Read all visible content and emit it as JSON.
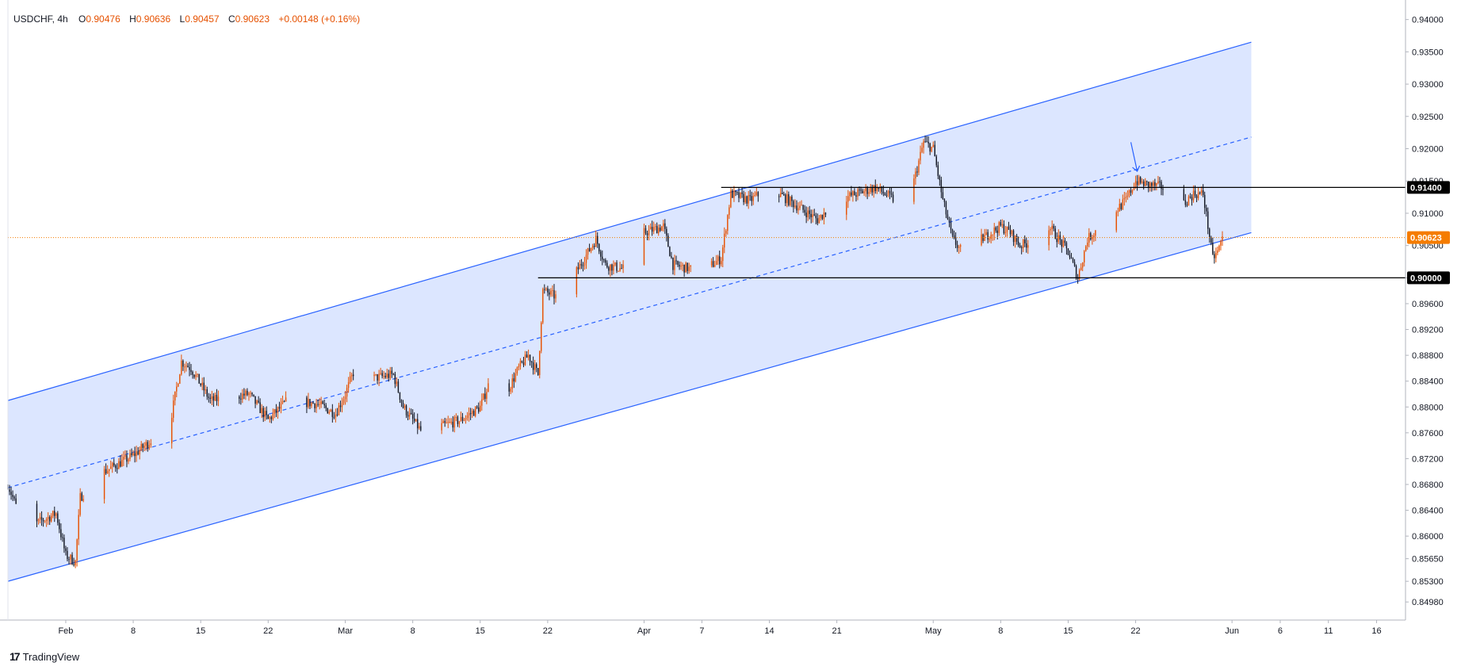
{
  "legend": {
    "symbol": "USDCHF, 4h",
    "open_label": "O",
    "open": "0.90476",
    "high_label": "H",
    "high": "0.90636",
    "low_label": "L",
    "low": "0.90457",
    "close_label": "C",
    "close": "0.90623",
    "change": "+0.00148 (+0.16%)"
  },
  "brand": {
    "icon": "tradingview-logo-icon",
    "name": "TradingView"
  },
  "colors": {
    "up": "#e65100",
    "down": "#131722",
    "channel_line": "#2962ff",
    "channel_fill": "#d6e2ff",
    "price_line": "#f57c00",
    "axis_text": "#131722"
  },
  "chart_data": {
    "type": "candlestick",
    "symbol": "USDCHF",
    "interval": "4h",
    "ylim": [
      0.847,
      0.9418
    ],
    "y_ticks": [
      "0.94000",
      "0.93500",
      "0.93000",
      "0.92500",
      "0.92000",
      "0.91500",
      "0.91000",
      "0.90500",
      "0.90000",
      "0.89600",
      "0.89200",
      "0.88800",
      "0.88400",
      "0.88000",
      "0.87600",
      "0.87200",
      "0.86800",
      "0.86400",
      "0.86000",
      "0.85650",
      "0.85300",
      "0.84980"
    ],
    "y_tick_values": [
      0.94,
      0.935,
      0.93,
      0.925,
      0.92,
      0.915,
      0.91,
      0.905,
      0.9,
      0.896,
      0.892,
      0.888,
      0.884,
      0.88,
      0.876,
      0.872,
      0.868,
      0.864,
      0.86,
      0.8565,
      0.853,
      0.8498
    ],
    "x_ticks": [
      {
        "label": "Feb",
        "date": "2024-02-01"
      },
      {
        "label": "8",
        "date": "2024-02-08"
      },
      {
        "label": "15",
        "date": "2024-02-15"
      },
      {
        "label": "22",
        "date": "2024-02-22"
      },
      {
        "label": "Mar",
        "date": "2024-03-01"
      },
      {
        "label": "8",
        "date": "2024-03-08"
      },
      {
        "label": "15",
        "date": "2024-03-15"
      },
      {
        "label": "22",
        "date": "2024-03-22"
      },
      {
        "label": "Apr",
        "date": "2024-04-01"
      },
      {
        "label": "7",
        "date": "2024-04-07"
      },
      {
        "label": "14",
        "date": "2024-04-14"
      },
      {
        "label": "21",
        "date": "2024-04-21"
      },
      {
        "label": "May",
        "date": "2024-05-01"
      },
      {
        "label": "8",
        "date": "2024-05-08"
      },
      {
        "label": "15",
        "date": "2024-05-15"
      },
      {
        "label": "22",
        "date": "2024-05-22"
      },
      {
        "label": "Jun",
        "date": "2024-06-01"
      },
      {
        "label": "6",
        "date": "2024-06-06"
      },
      {
        "label": "11",
        "date": "2024-06-11"
      },
      {
        "label": "16",
        "date": "2024-06-16"
      }
    ],
    "price_path": [
      [
        "2024-01-26",
        0.868
      ],
      [
        "2024-01-27",
        0.864
      ],
      [
        "2024-01-29",
        0.862
      ],
      [
        "2024-01-31",
        0.8635
      ],
      [
        "2024-02-01",
        0.857
      ],
      [
        "2024-02-02",
        0.856
      ],
      [
        "2024-02-02T12",
        0.866
      ],
      [
        "2024-02-05",
        0.87
      ],
      [
        "2024-02-08",
        0.8725
      ],
      [
        "2024-02-10",
        0.875
      ],
      [
        "2024-02-12",
        0.879
      ],
      [
        "2024-02-13",
        0.887
      ],
      [
        "2024-02-14",
        0.886
      ],
      [
        "2024-02-16",
        0.881
      ],
      [
        "2024-02-20",
        0.882
      ],
      [
        "2024-02-22",
        0.878
      ],
      [
        "2024-02-24",
        0.881
      ],
      [
        "2024-02-27",
        0.8805
      ],
      [
        "2024-02-29",
        0.879
      ],
      [
        "2024-03-01",
        0.882
      ],
      [
        "2024-03-02",
        0.886
      ],
      [
        "2024-03-04",
        0.8845
      ],
      [
        "2024-03-06",
        0.885
      ],
      [
        "2024-03-07",
        0.88
      ],
      [
        "2024-03-09",
        0.876
      ],
      [
        "2024-03-11",
        0.877
      ],
      [
        "2024-03-13",
        0.878
      ],
      [
        "2024-03-15",
        0.88
      ],
      [
        "2024-03-16",
        0.884
      ],
      [
        "2024-03-18",
        0.883
      ],
      [
        "2024-03-19",
        0.886
      ],
      [
        "2024-03-20",
        0.888
      ],
      [
        "2024-03-21",
        0.885
      ],
      [
        "2024-03-21T12",
        0.898
      ],
      [
        "2024-03-23",
        0.897
      ],
      [
        "2024-03-25",
        0.901
      ],
      [
        "2024-03-27",
        0.906
      ],
      [
        "2024-03-28",
        0.902
      ],
      [
        "2024-03-31",
        0.901
      ],
      [
        "2024-04-01",
        0.907
      ],
      [
        "2024-04-03",
        0.908
      ],
      [
        "2024-04-04",
        0.902
      ],
      [
        "2024-04-07",
        0.901
      ],
      [
        "2024-04-09",
        0.903
      ],
      [
        "2024-04-10",
        0.913
      ],
      [
        "2024-04-12",
        0.912
      ],
      [
        "2024-04-14",
        0.914
      ],
      [
        "2024-04-16",
        0.912
      ],
      [
        "2024-04-18",
        0.91
      ],
      [
        "2024-04-19",
        0.909
      ],
      [
        "2024-04-21",
        0.912
      ],
      [
        "2024-04-23",
        0.913
      ],
      [
        "2024-04-25",
        0.914
      ],
      [
        "2024-04-27",
        0.912
      ],
      [
        "2024-04-29",
        0.915
      ],
      [
        "2024-04-30",
        0.921
      ],
      [
        "2024-05-01",
        0.92
      ],
      [
        "2024-05-02",
        0.912
      ],
      [
        "2024-05-03",
        0.906
      ],
      [
        "2024-05-04",
        0.904
      ],
      [
        "2024-05-06",
        0.906
      ],
      [
        "2024-05-08",
        0.908
      ],
      [
        "2024-05-09",
        0.907
      ],
      [
        "2024-05-10",
        0.905
      ],
      [
        "2024-05-12",
        0.906
      ],
      [
        "2024-05-13",
        0.908
      ],
      [
        "2024-05-15",
        0.904
      ],
      [
        "2024-05-16",
        0.9
      ],
      [
        "2024-05-17",
        0.906
      ],
      [
        "2024-05-19",
        0.909
      ],
      [
        "2024-05-21",
        0.912
      ],
      [
        "2024-05-22",
        0.915
      ],
      [
        "2024-05-23",
        0.9145
      ],
      [
        "2024-05-25",
        0.914
      ],
      [
        "2024-05-27",
        0.9115
      ],
      [
        "2024-05-28",
        0.913
      ],
      [
        "2024-05-29",
        0.913
      ],
      [
        "2024-05-30",
        0.903
      ],
      [
        "2024-05-30T12",
        0.904
      ],
      [
        "2024-05-31",
        0.9062
      ]
    ],
    "channel": {
      "upper": [
        [
          "2024-01-26",
          0.881
        ],
        [
          "2024-06-03",
          0.9365
        ]
      ],
      "lower": [
        [
          "2024-01-26",
          0.853
        ],
        [
          "2024-06-03",
          0.907
        ]
      ],
      "middle": [
        [
          "2024-01-26",
          0.8675
        ],
        [
          "2024-06-03",
          0.9218
        ]
      ]
    },
    "horizontal_lines": [
      {
        "value": 0.914,
        "label": "0.91400",
        "from": "2024-04-09"
      },
      {
        "value": 0.9,
        "label": "0.90000",
        "from": "2024-03-21"
      }
    ],
    "current_price": {
      "value": 0.90623,
      "label": "0.90623"
    },
    "arrow": {
      "from": [
        "2024-05-22",
        0.921
      ],
      "to": [
        "2024-05-22",
        0.9165
      ]
    },
    "x_range": [
      "2024-01-26",
      "2024-06-19"
    ]
  }
}
